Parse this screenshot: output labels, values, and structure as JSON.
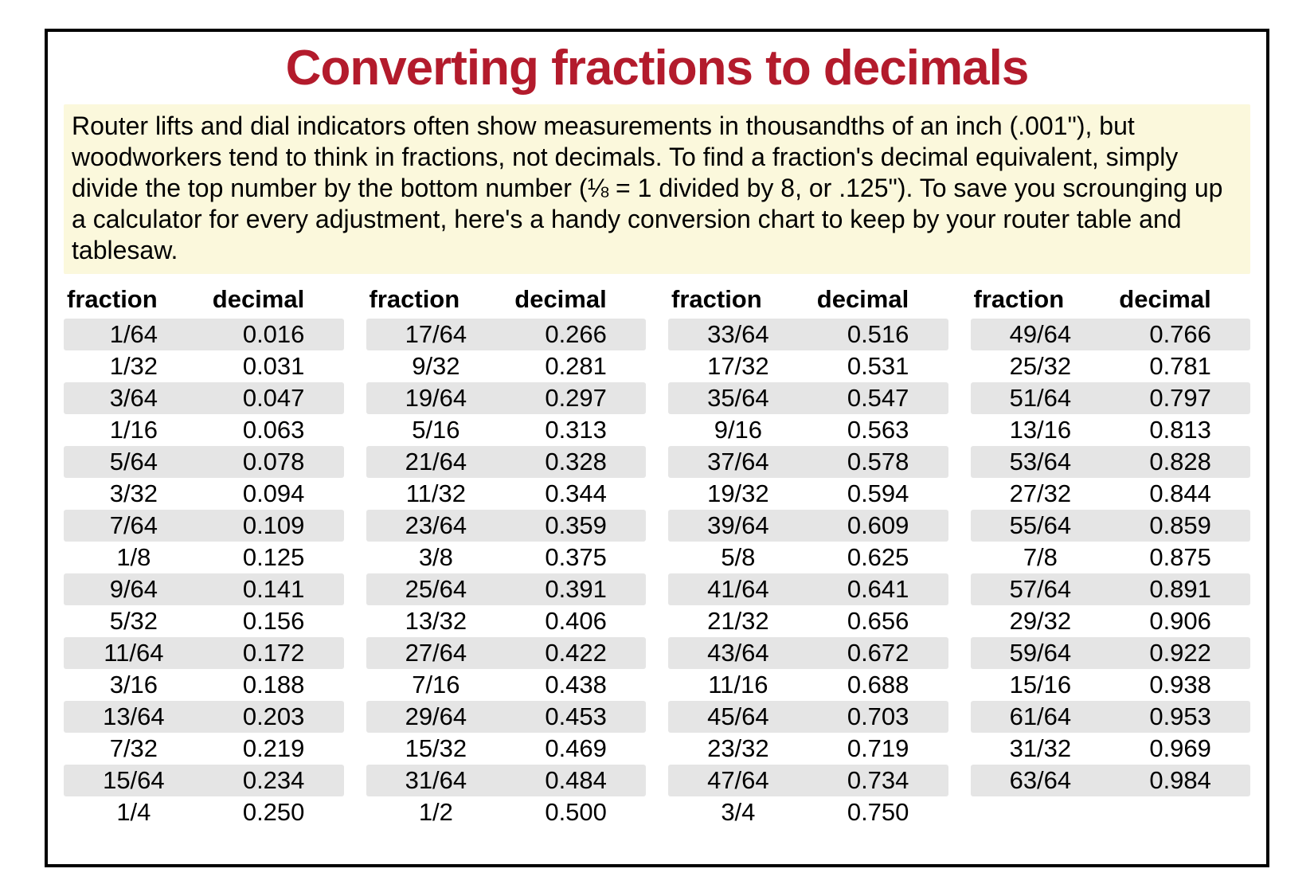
{
  "title": "Converting fractions to decimals",
  "title_color": "#b31b2c",
  "title_fontsize": 62,
  "intro_text": "Router lifts and dial indicators often show measurements in thousandths of an inch (.001\"), but woodworkers tend to think in fractions, not decimals. To find a fraction's decimal equivalent, simply divide the top number by the bottom number (⅛ = 1 divided by 8, or .125\"). To save you scrounging up a calculator for every adjustment, here's a handy conversion chart to keep by your router table and tablesaw.",
  "intro_bg": "#fbf8dc",
  "intro_fontsize": 32,
  "intro_color": "#000000",
  "header_fraction": "fraction",
  "header_decimal": "decimal",
  "header_fontsize": 31,
  "body_fontsize": 31,
  "row_stripe_odd": "#e5e5e5",
  "row_stripe_even": "#ffffff",
  "text_color": "#000000",
  "columns": [
    [
      {
        "f": "1/64",
        "d": "0.016"
      },
      {
        "f": "1/32",
        "d": "0.031"
      },
      {
        "f": "3/64",
        "d": "0.047"
      },
      {
        "f": "1/16",
        "d": "0.063"
      },
      {
        "f": "5/64",
        "d": "0.078"
      },
      {
        "f": "3/32",
        "d": "0.094"
      },
      {
        "f": "7/64",
        "d": "0.109"
      },
      {
        "f": "1/8",
        "d": "0.125"
      },
      {
        "f": "9/64",
        "d": "0.141"
      },
      {
        "f": "5/32",
        "d": "0.156"
      },
      {
        "f": "11/64",
        "d": "0.172"
      },
      {
        "f": "3/16",
        "d": "0.188"
      },
      {
        "f": "13/64",
        "d": "0.203"
      },
      {
        "f": "7/32",
        "d": "0.219"
      },
      {
        "f": "15/64",
        "d": "0.234"
      },
      {
        "f": "1/4",
        "d": "0.250"
      }
    ],
    [
      {
        "f": "17/64",
        "d": "0.266"
      },
      {
        "f": "9/32",
        "d": "0.281"
      },
      {
        "f": "19/64",
        "d": "0.297"
      },
      {
        "f": "5/16",
        "d": "0.313"
      },
      {
        "f": "21/64",
        "d": "0.328"
      },
      {
        "f": "11/32",
        "d": "0.344"
      },
      {
        "f": "23/64",
        "d": "0.359"
      },
      {
        "f": "3/8",
        "d": "0.375"
      },
      {
        "f": "25/64",
        "d": "0.391"
      },
      {
        "f": "13/32",
        "d": "0.406"
      },
      {
        "f": "27/64",
        "d": "0.422"
      },
      {
        "f": "7/16",
        "d": "0.438"
      },
      {
        "f": "29/64",
        "d": "0.453"
      },
      {
        "f": "15/32",
        "d": "0.469"
      },
      {
        "f": "31/64",
        "d": "0.484"
      },
      {
        "f": "1/2",
        "d": "0.500"
      }
    ],
    [
      {
        "f": "33/64",
        "d": "0.516"
      },
      {
        "f": "17/32",
        "d": "0.531"
      },
      {
        "f": "35/64",
        "d": "0.547"
      },
      {
        "f": "9/16",
        "d": "0.563"
      },
      {
        "f": "37/64",
        "d": "0.578"
      },
      {
        "f": "19/32",
        "d": "0.594"
      },
      {
        "f": "39/64",
        "d": "0.609"
      },
      {
        "f": "5/8",
        "d": "0.625"
      },
      {
        "f": "41/64",
        "d": "0.641"
      },
      {
        "f": "21/32",
        "d": "0.656"
      },
      {
        "f": "43/64",
        "d": "0.672"
      },
      {
        "f": "11/16",
        "d": "0.688"
      },
      {
        "f": "45/64",
        "d": "0.703"
      },
      {
        "f": "23/32",
        "d": "0.719"
      },
      {
        "f": "47/64",
        "d": "0.734"
      },
      {
        "f": "3/4",
        "d": "0.750"
      }
    ],
    [
      {
        "f": "49/64",
        "d": "0.766"
      },
      {
        "f": "25/32",
        "d": "0.781"
      },
      {
        "f": "51/64",
        "d": "0.797"
      },
      {
        "f": "13/16",
        "d": "0.813"
      },
      {
        "f": "53/64",
        "d": "0.828"
      },
      {
        "f": "27/32",
        "d": "0.844"
      },
      {
        "f": "55/64",
        "d": "0.859"
      },
      {
        "f": "7/8",
        "d": "0.875"
      },
      {
        "f": "57/64",
        "d": "0.891"
      },
      {
        "f": "29/32",
        "d": "0.906"
      },
      {
        "f": "59/64",
        "d": "0.922"
      },
      {
        "f": "15/16",
        "d": "0.938"
      },
      {
        "f": "61/64",
        "d": "0.953"
      },
      {
        "f": "31/32",
        "d": "0.969"
      },
      {
        "f": "63/64",
        "d": "0.984"
      }
    ]
  ]
}
